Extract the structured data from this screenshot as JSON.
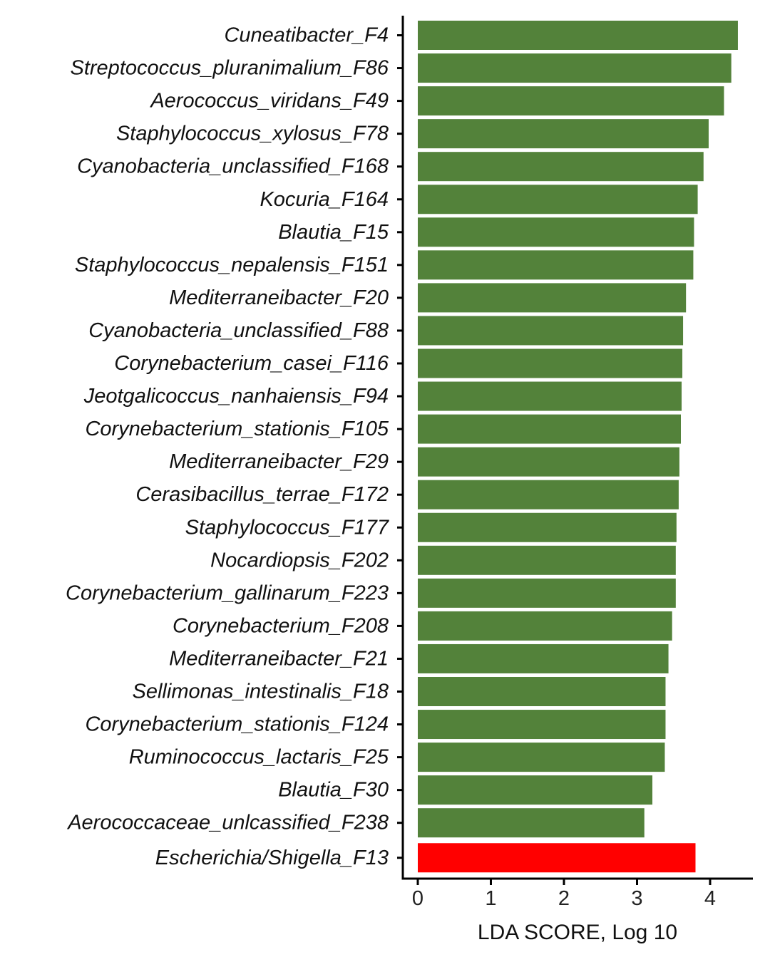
{
  "chart_data": {
    "type": "bar",
    "orientation": "horizontal",
    "xlabel": "LDA SCORE, Log 10",
    "ylabel": "",
    "title": "",
    "xlim": [
      -0.2,
      4.55
    ],
    "xticks": [
      0,
      1,
      2,
      3,
      4
    ],
    "grid": false,
    "legend": "none",
    "categories": [
      "Cuneatibacter_F4",
      "Streptococcus_pluranimalium_F86",
      "Aerococcus_viridans_F49",
      "Staphylococcus_xylosus_F78",
      "Cyanobacteria_unclassified_F168",
      "Kocuria_F164",
      "Blautia_F15",
      "Staphylococcus_nepalensis_F151",
      "Mediterraneibacter_F20",
      "Cyanobacteria_unclassified_F88",
      "Corynebacterium_casei_F116",
      "Jeotgalicoccus_nanhaiensis_F94",
      "Corynebacterium_stationis_F105",
      "Mediterraneibacter_F29",
      "Cerasibacillus_terrae_F172",
      "Staphylococcus_F177",
      "Nocardiopsis_F202",
      "Corynebacterium_gallinarum_F223",
      "Corynebacterium_F208",
      "Mediterraneibacter_F21",
      "Sellimonas_intestinalis_F18",
      "Corynebacterium_stationis_F124",
      "Ruminococcus_lactaris_F25",
      "Blautia_F30",
      "Aerococcaceae_unlcassified_F238",
      "Escherichia/Shigella_F13"
    ],
    "values": [
      4.38,
      4.29,
      4.19,
      3.98,
      3.91,
      3.83,
      3.78,
      3.77,
      3.67,
      3.63,
      3.62,
      3.61,
      3.6,
      3.58,
      3.57,
      3.54,
      3.53,
      3.53,
      3.48,
      3.43,
      3.39,
      3.39,
      3.38,
      3.21,
      3.1,
      3.8
    ],
    "groups": [
      "green",
      "green",
      "green",
      "green",
      "green",
      "green",
      "green",
      "green",
      "green",
      "green",
      "green",
      "green",
      "green",
      "green",
      "green",
      "green",
      "green",
      "green",
      "green",
      "green",
      "green",
      "green",
      "green",
      "green",
      "green",
      "red"
    ],
    "colors": {
      "green": "#53823a",
      "red": "#ff0000",
      "axis": "#000000"
    }
  }
}
